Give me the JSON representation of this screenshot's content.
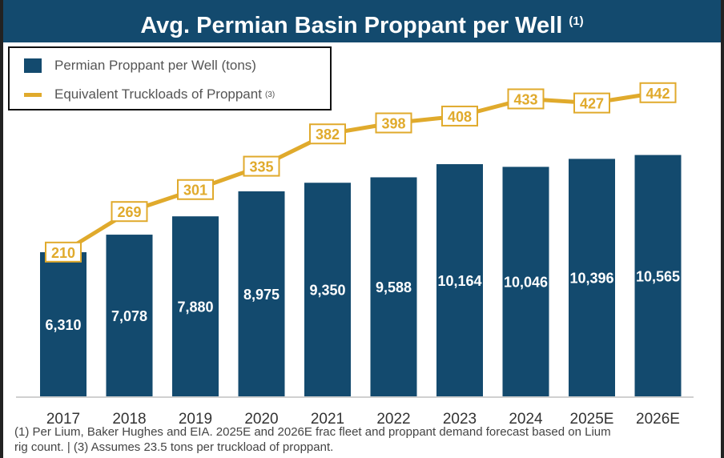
{
  "title": "Avg. Permian Basin Proppant per Well",
  "title_sup": "(1)",
  "footnote_line1": "(1) Per Lium, Baker Hughes and EIA. 2025E and 2026E frac fleet and proppant demand forecast based on Lium",
  "footnote_line2": "rig count. | (3) Assumes 23.5 tons per truckload of proppant.",
  "colors": {
    "bar": "#134a6e",
    "line": "#e0aa2c",
    "title_bg": "#134a6e"
  },
  "chart_data": {
    "type": "bar",
    "title": "Avg. Permian Basin Proppant per Well",
    "categories": [
      "2017",
      "2018",
      "2019",
      "2020",
      "2021",
      "2022",
      "2023",
      "2024",
      "2025E",
      "2026E"
    ],
    "series": [
      {
        "name": "Permian Proppant per Well (tons)",
        "type": "bar",
        "values": [
          6310,
          7078,
          7880,
          8975,
          9350,
          9588,
          10164,
          10046,
          10396,
          10565
        ],
        "labels": [
          "6,310",
          "7,078",
          "7,880",
          "8,975",
          "9,350",
          "9,588",
          "10,164",
          "10,046",
          "10,396",
          "10,565"
        ]
      },
      {
        "name": "Equivalent Truckloads of Proppant",
        "name_sup": "(3)",
        "type": "line",
        "values": [
          210,
          269,
          301,
          335,
          382,
          398,
          408,
          433,
          427,
          442
        ],
        "labels": [
          "210",
          "269",
          "301",
          "335",
          "382",
          "398",
          "408",
          "433",
          "427",
          "442"
        ]
      }
    ],
    "legend": "top-left",
    "grid": false
  }
}
